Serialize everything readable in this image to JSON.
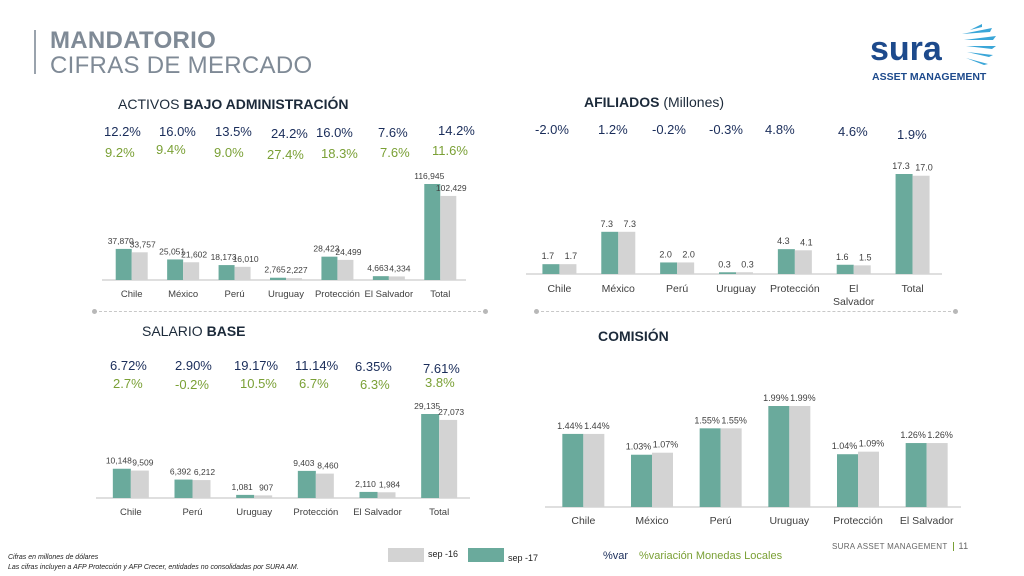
{
  "title": {
    "line1": "MANDATORIO",
    "line2": "CIFRAS DE MERCADO"
  },
  "logo": {
    "brand": "sura",
    "subtitle": "ASSET MANAGEMENT"
  },
  "colors": {
    "sep17": "#6aaa9c",
    "sep16": "#d3d3d3",
    "pct_dark": "#1a2d5a",
    "pct_green": "#7aa035"
  },
  "sections": {
    "activos": {
      "prefix": "ACTIVOS ",
      "bold": "BAJO ADMINISTRACIÓN"
    },
    "afiliados": {
      "bold": "AFILIADOS",
      "suffix": " (Millones)"
    },
    "salario": {
      "prefix": "SALARIO ",
      "bold": "BASE"
    },
    "comision": {
      "bold": "COMISIÓN"
    }
  },
  "activos_pct": {
    "var": [
      "12.2%",
      "16.0%",
      "13.5%",
      "24.2%",
      "16.0%",
      "7.6%",
      "14.2%"
    ],
    "local": [
      "9.2%",
      "9.4%",
      "9.0%",
      "27.4%",
      "18.3%",
      "7.6%",
      "11.6%"
    ]
  },
  "afiliados_pct": {
    "var": [
      "-2.0%",
      "1.2%",
      "-0.2%",
      "-0.3%",
      "4.8%",
      "4.6%",
      "1.9%"
    ]
  },
  "salario_pct": {
    "var": [
      "6.72%",
      "2.90%",
      "19.17%",
      "11.14%",
      "6.35%",
      "7.61%"
    ],
    "local": [
      "2.7%",
      "-0.2%",
      "10.5%",
      "6.7%",
      "6.3%",
      "3.8%"
    ]
  },
  "chart_data": [
    {
      "id": "activos",
      "type": "bar",
      "categories": [
        "Chile",
        "México",
        "Perú",
        "Uruguay",
        "Protección",
        "El Salvador",
        "Total"
      ],
      "series": [
        {
          "name": "sep -17",
          "values": [
            37870,
            25051,
            18173,
            2765,
            28423,
            4663,
            116945
          ],
          "labels": [
            "37,870",
            "25,051",
            "18,173",
            "2,765",
            "28,423",
            "4,663",
            "116,945"
          ]
        },
        {
          "name": "sep -16",
          "values": [
            33757,
            21602,
            16010,
            2227,
            24499,
            4334,
            102429
          ],
          "labels": [
            "33,757",
            "21,602",
            "16,010",
            "2,227",
            "24,499",
            "4,334",
            "102,429"
          ]
        }
      ],
      "ylim": [
        0,
        116945
      ]
    },
    {
      "id": "afiliados",
      "type": "bar",
      "categories": [
        "Chile",
        "México",
        "Perú",
        "Uruguay",
        "Protección",
        "El Salvador",
        "Total"
      ],
      "series": [
        {
          "name": "sep -17",
          "values": [
            1.7,
            7.3,
            2.0,
            0.3,
            4.3,
            1.6,
            17.3
          ],
          "labels": [
            "1.7",
            "7.3",
            "2.0",
            "0.3",
            "4.3",
            "1.6",
            "17.3"
          ]
        },
        {
          "name": "sep -16",
          "values": [
            1.7,
            7.3,
            2.0,
            0.3,
            4.1,
            1.5,
            17.0
          ],
          "labels": [
            "1.7",
            "7.3",
            "2.0",
            "0.3",
            "4.1",
            "1.5",
            "17.0"
          ]
        }
      ],
      "ylim": [
        0,
        17.3
      ]
    },
    {
      "id": "salario",
      "type": "bar",
      "categories": [
        "Chile",
        "Perú",
        "Uruguay",
        "Protección",
        "El Salvador",
        "Total"
      ],
      "series": [
        {
          "name": "sep -17",
          "values": [
            10148,
            6392,
            1081,
            9403,
            2110,
            29135
          ],
          "labels": [
            "10,148",
            "6,392",
            "1,081",
            "9,403",
            "2,110",
            "29,135"
          ]
        },
        {
          "name": "sep -16",
          "values": [
            9509,
            6212,
            907,
            8460,
            1984,
            27073
          ],
          "labels": [
            "9,509",
            "6,212",
            "907",
            "8,460",
            "1,984",
            "27,073"
          ]
        }
      ],
      "ylim": [
        0,
        29135
      ]
    },
    {
      "id": "comision",
      "type": "bar",
      "categories": [
        "Chile",
        "México",
        "Perú",
        "Uruguay",
        "Protección",
        "El Salvador"
      ],
      "series": [
        {
          "name": "sep -17",
          "values": [
            1.44,
            1.03,
            1.55,
            1.99,
            1.04,
            1.26
          ],
          "labels": [
            "1.44%",
            "1.03%",
            "1.55%",
            "1.99%",
            "1.04%",
            "1.26%"
          ]
        },
        {
          "name": "sep -16",
          "values": [
            1.44,
            1.07,
            1.55,
            1.99,
            1.09,
            1.26
          ],
          "labels": [
            "1.44%",
            "1.07%",
            "1.55%",
            "1.99%",
            "1.09%",
            "1.26%"
          ]
        }
      ],
      "ylim": [
        0,
        1.99
      ]
    }
  ],
  "legend": {
    "sep16": "sep -16",
    "sep17": "sep -17",
    "var": "%var",
    "local": "%variación Monedas Locales"
  },
  "notes": {
    "line1": "Cifras en millones de dólares",
    "line2": "Las cifras incluyen a  AFP Protección y AFP Crecer, entidades no consolidadas por SURA AM."
  },
  "footer": {
    "company": "SURA ASSET MANAGEMENT",
    "page": "11"
  }
}
